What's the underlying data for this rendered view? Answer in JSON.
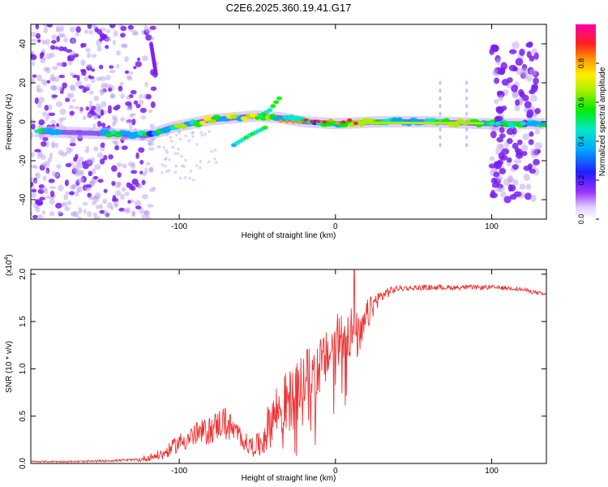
{
  "title": "C2E6.2025.360.19.41.G17",
  "chart_data": [
    {
      "type": "heatmap",
      "xlabel": "Height of straight line (km)",
      "ylabel": "Frequency (Hz)",
      "xlim": [
        -195,
        135
      ],
      "ylim": [
        -50,
        50
      ],
      "xticks": [
        -100,
        0,
        100
      ],
      "xtick_labels": [
        "-100",
        "0",
        "100"
      ],
      "yticks": [
        -40,
        -20,
        0,
        20,
        40
      ],
      "ytick_labels": [
        "-40",
        "-20",
        "0",
        "20",
        "40"
      ],
      "colorbar": {
        "label": "Normalized spectral amplitude",
        "range": [
          0,
          1
        ],
        "ticks": [
          0.0,
          0.2,
          0.4,
          0.6,
          0.8
        ],
        "tick_labels": [
          "0.0",
          "0.2",
          "0.4",
          "0.6",
          "0.8"
        ]
      },
      "features": [
        {
          "name": "scatter-noise-left",
          "x_range": [
            -195,
            -115
          ],
          "freq_range": [
            -50,
            50
          ],
          "amplitude": 0.2
        },
        {
          "name": "diagonal-streak",
          "x_start": -118,
          "x_end": -115,
          "freq_start": 40,
          "freq_end": 25,
          "amplitude": 0.25
        },
        {
          "name": "main-trace",
          "points": [
            [
              -190,
              -5
            ],
            [
              -150,
              -6
            ],
            [
              -120,
              -7
            ],
            [
              -105,
              -3
            ],
            [
              -80,
              1
            ],
            [
              -65,
              2
            ],
            [
              -50,
              3
            ],
            [
              -35,
              2
            ],
            [
              -20,
              0
            ],
            [
              0,
              -1
            ],
            [
              30,
              0
            ],
            [
              60,
              0
            ],
            [
              95,
              -1
            ],
            [
              135,
              -1
            ]
          ],
          "amplitude": 0.55
        },
        {
          "name": "upper-branch",
          "points": [
            [
              -50,
              2
            ],
            [
              -42,
              6
            ],
            [
              -36,
              12
            ]
          ],
          "amplitude": 0.5
        },
        {
          "name": "lower-branch",
          "points": [
            [
              -65,
              -12
            ],
            [
              -55,
              -7
            ],
            [
              -45,
              -3
            ]
          ],
          "amplitude": 0.45
        },
        {
          "name": "strong-peaks",
          "x_range": [
            -35,
            15
          ],
          "freq": 0,
          "amplitude": 0.9
        },
        {
          "name": "vertical-stripes",
          "x_positions": [
            67,
            84
          ],
          "freq_range": [
            -12,
            20
          ],
          "amplitude": 0.15
        },
        {
          "name": "right-cluster",
          "x_range": [
            100,
            130
          ],
          "freq_range": [
            -40,
            40
          ],
          "amplitude": 0.35
        }
      ]
    },
    {
      "type": "line",
      "xlabel": "Height of straight line (km)",
      "ylabel": "SNR (10 * v/v)",
      "y_scale_label": "(x10",
      "y_scale_exp": "4",
      "y_scale_close": ")",
      "xlim": [
        -195,
        135
      ],
      "ylim": [
        0,
        2.05
      ],
      "xticks": [
        -100,
        0,
        100
      ],
      "xtick_labels": [
        "-100",
        "0",
        "100"
      ],
      "yticks": [
        0.0,
        0.5,
        1.0,
        1.5,
        2.0
      ],
      "ytick_labels": [
        "0.0",
        "0.5",
        "1.0",
        "1.5",
        "2.0"
      ],
      "series": [
        {
          "name": "SNR",
          "color": "#ee3333",
          "envelope": [
            [
              -195,
              0.02
            ],
            [
              -160,
              0.02
            ],
            [
              -125,
              0.04
            ],
            [
              -110,
              0.1
            ],
            [
              -100,
              0.22
            ],
            [
              -90,
              0.3
            ],
            [
              -80,
              0.35
            ],
            [
              -72,
              0.45
            ],
            [
              -62,
              0.3
            ],
            [
              -55,
              0.18
            ],
            [
              -48,
              0.2
            ],
            [
              -40,
              0.5
            ],
            [
              -35,
              0.6
            ],
            [
              -30,
              0.65
            ],
            [
              -25,
              0.72
            ],
            [
              -20,
              0.9
            ],
            [
              -12,
              1.0
            ],
            [
              -6,
              1.1
            ],
            [
              0,
              1.28
            ],
            [
              4,
              1.35
            ],
            [
              8,
              1.4
            ],
            [
              12,
              1.38
            ],
            [
              16,
              1.3
            ],
            [
              20,
              1.55
            ],
            [
              26,
              1.72
            ],
            [
              32,
              1.8
            ],
            [
              40,
              1.85
            ],
            [
              60,
              1.86
            ],
            [
              80,
              1.86
            ],
            [
              100,
              1.86
            ],
            [
              115,
              1.85
            ],
            [
              125,
              1.82
            ],
            [
              135,
              1.78
            ]
          ],
          "noise": [
            [
              -195,
              0.008
            ],
            [
              -130,
              0.012
            ],
            [
              -110,
              0.06
            ],
            [
              -95,
              0.12
            ],
            [
              -80,
              0.15
            ],
            [
              -70,
              0.18
            ],
            [
              -60,
              0.1
            ],
            [
              -50,
              0.12
            ],
            [
              -40,
              0.3
            ],
            [
              -30,
              0.35
            ],
            [
              -20,
              0.3
            ],
            [
              -10,
              0.3
            ],
            [
              0,
              0.28
            ],
            [
              10,
              0.3
            ],
            [
              18,
              0.2
            ],
            [
              28,
              0.08
            ],
            [
              40,
              0.03
            ],
            [
              135,
              0.02
            ]
          ],
          "peak": [
            12,
            2.05
          ]
        }
      ]
    }
  ],
  "colors": {
    "trace": "#ee3333",
    "noise_dot": "#7a1cf0",
    "faint_dot": "#b9a0f0"
  }
}
